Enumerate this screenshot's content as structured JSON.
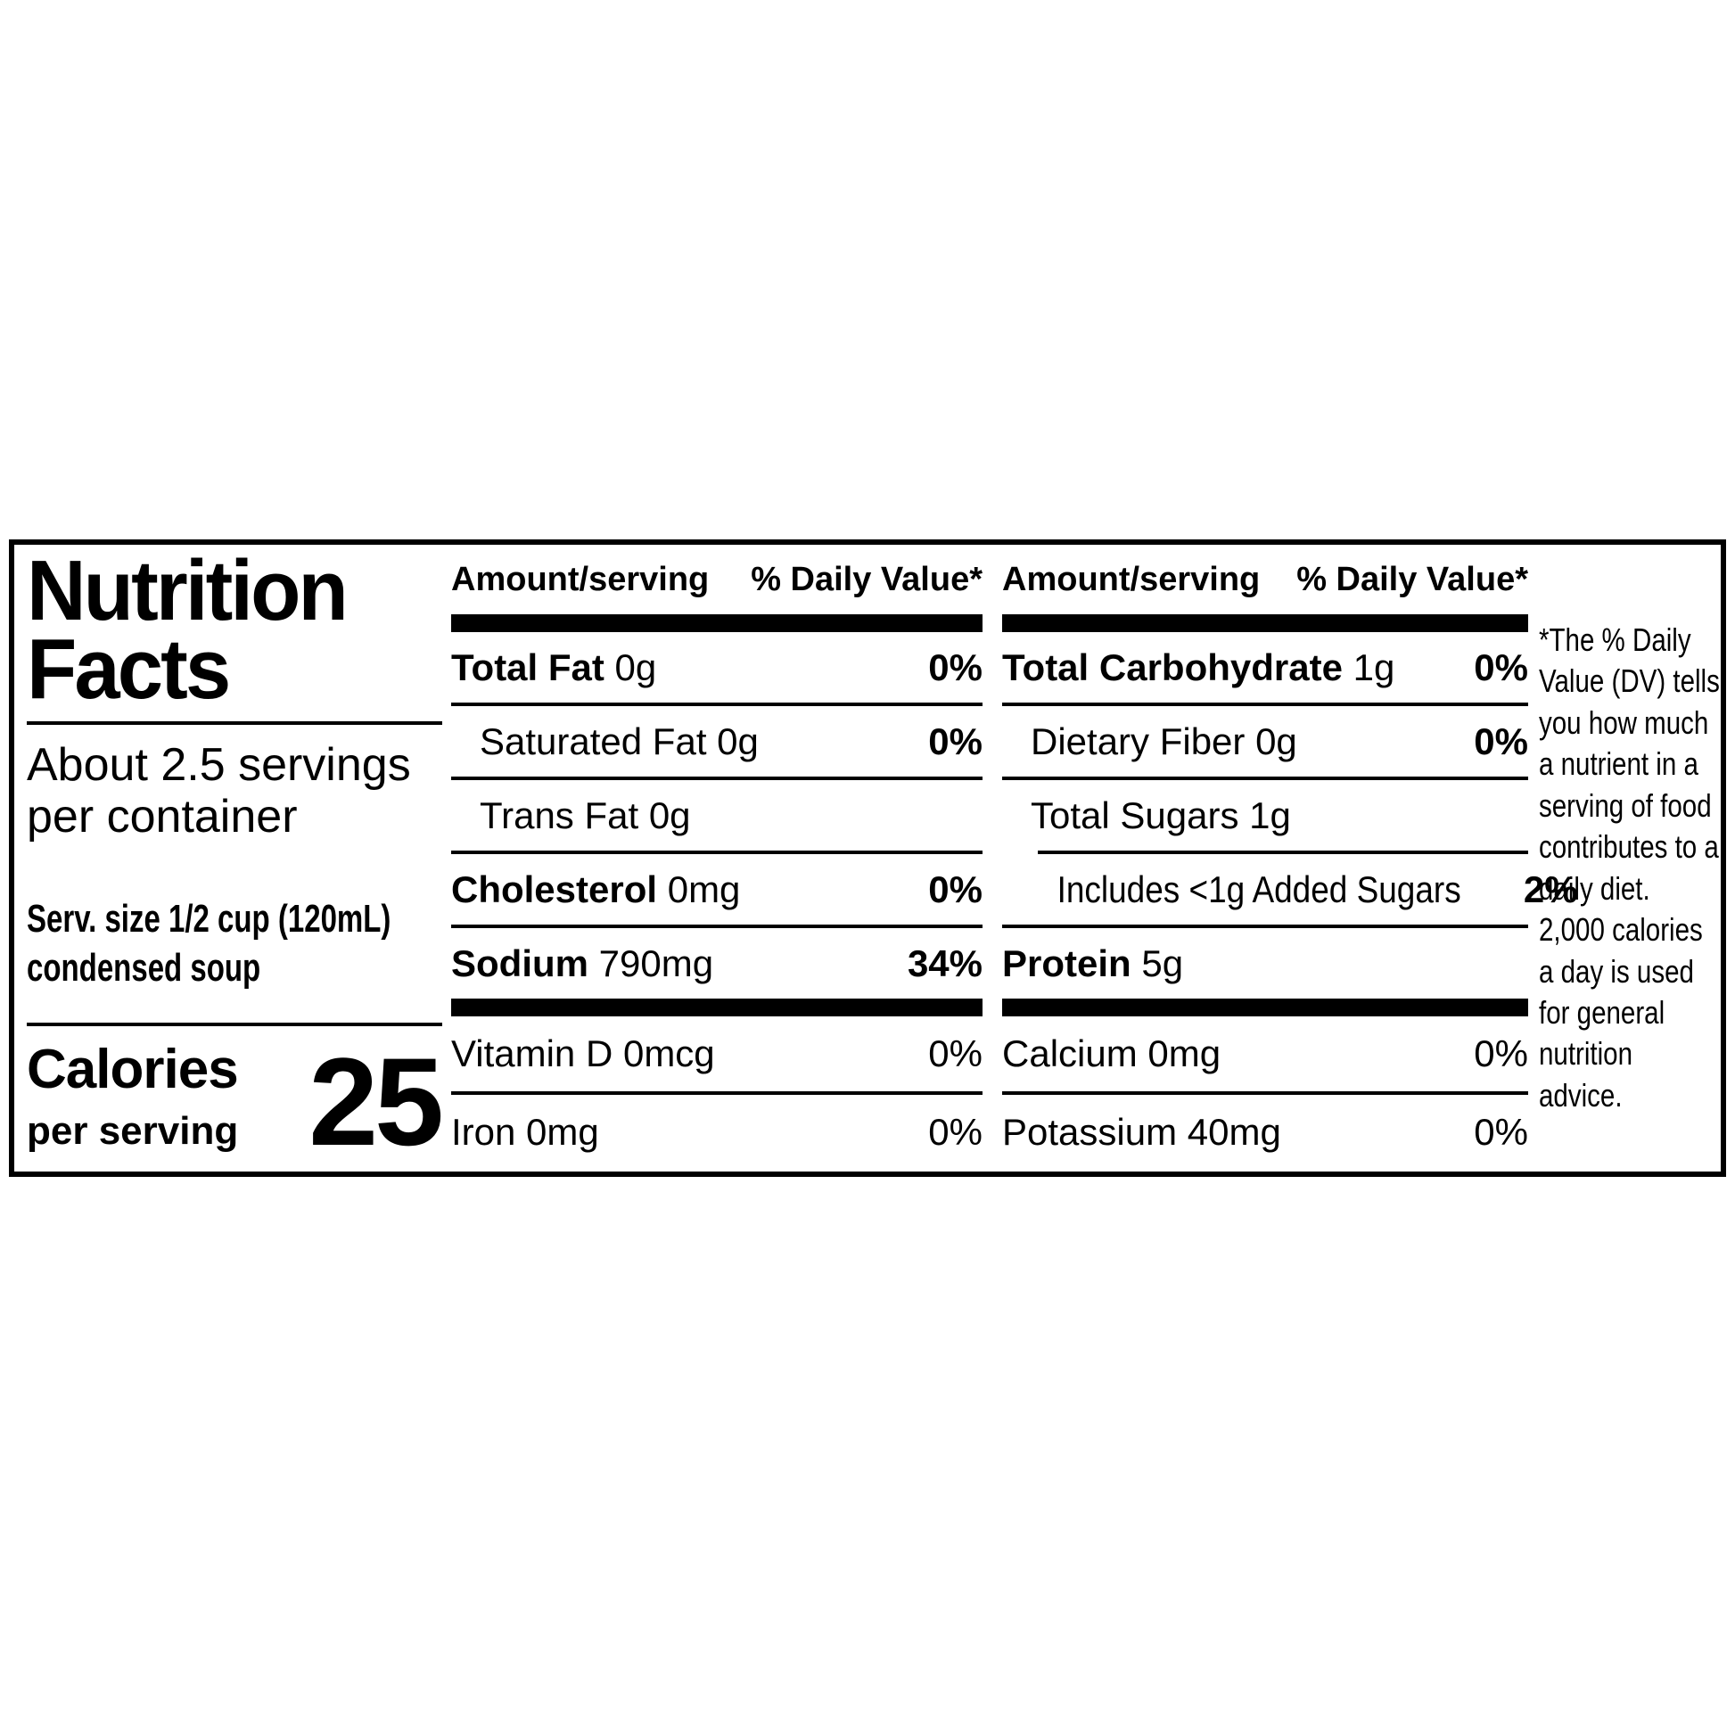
{
  "colors": {
    "ink": "#000000",
    "paper": "#ffffff"
  },
  "label": {
    "title_lines": [
      "Nutrition",
      "Facts"
    ],
    "servings_line1": "About 2.5 servings",
    "servings_line2": "per container",
    "serving_size_line1": "Serv. size 1/2 cup (120mL)",
    "serving_size_line2": "condensed soup",
    "calories": {
      "word": "Calories",
      "sub": "per serving",
      "value": "25"
    },
    "header": {
      "amount": "Amount/serving",
      "dv": "% Daily Value*"
    },
    "columns": [
      {
        "main": [
          {
            "name": "Total Fat",
            "amount": "0g",
            "dv": "0%",
            "bold": true,
            "dv_bold": true
          },
          {
            "name": "Saturated Fat",
            "amount": "0g",
            "dv": "0%",
            "indent": 1,
            "dv_bold": true
          },
          {
            "name": "Trans Fat",
            "amount": "0g",
            "dv": "",
            "indent": 1
          },
          {
            "name": "Cholesterol",
            "amount": "0mg",
            "dv": "0%",
            "bold": true,
            "dv_bold": true
          },
          {
            "name": "Sodium",
            "amount": "790mg",
            "dv": "34%",
            "bold": true,
            "dv_bold": true
          }
        ],
        "vitamins": [
          {
            "name": "Vitamin D",
            "amount": "0mcg",
            "dv": "0%"
          },
          {
            "name": "Iron",
            "amount": "0mg",
            "dv": "0%"
          }
        ]
      },
      {
        "main": [
          {
            "name": "Total Carbohydrate",
            "amount": "1g",
            "dv": "0%",
            "bold": true,
            "dv_bold": true
          },
          {
            "name": "Dietary Fiber",
            "amount": "0g",
            "dv": "0%",
            "indent": 1,
            "dv_bold": true
          },
          {
            "name": "Total Sugars",
            "amount": "1g",
            "dv": "",
            "indent": 1
          },
          {
            "name": "Includes <1g Added Sugars",
            "amount": "",
            "dv": "2%",
            "indent": 2,
            "dv_bold": true,
            "rule_indent": 40
          },
          {
            "name": "Protein",
            "amount": "5g",
            "dv": "",
            "bold": true
          }
        ],
        "vitamins": [
          {
            "name": "Calcium",
            "amount": "0mg",
            "dv": "0%"
          },
          {
            "name": "Potassium",
            "amount": "40mg",
            "dv": "0%"
          }
        ]
      }
    ],
    "footnote": "*The % Daily Value (DV) tells you how much a nutrient in a serving of food contributes to a daily diet. 2,000 calories a day is used for general nutrition advice."
  }
}
